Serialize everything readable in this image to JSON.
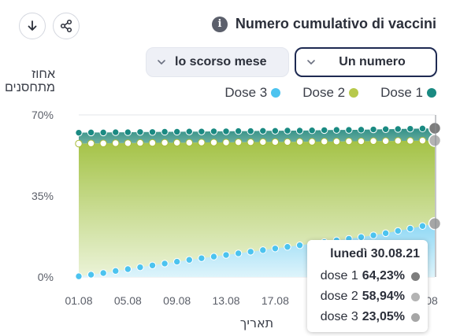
{
  "header": {
    "title": "Numero cumulativo di vaccini",
    "period_select": "lo scorso mese",
    "metric_select": "Un numero"
  },
  "chart_data": {
    "type": "area",
    "ylabel": "אחוז\nמתחסנים",
    "xlabel": "תאריך",
    "ylim": [
      0,
      70
    ],
    "yticks": [
      "70%",
      "35%",
      "0%"
    ],
    "xticks": [
      "01.08",
      "05.08",
      "09.08",
      "13.08",
      "17.08",
      "21.08",
      "25.08",
      "08"
    ],
    "x": [
      "01.08",
      "02.08",
      "03.08",
      "04.08",
      "05.08",
      "06.08",
      "07.08",
      "08.08",
      "09.08",
      "10.08",
      "11.08",
      "12.08",
      "13.08",
      "14.08",
      "15.08",
      "16.08",
      "17.08",
      "18.08",
      "19.08",
      "20.08",
      "21.08",
      "22.08",
      "23.08",
      "24.08",
      "25.08",
      "26.08",
      "27.08",
      "28.08",
      "29.08",
      "30.08"
    ],
    "grid": true,
    "legend_position": "top-right",
    "series": [
      {
        "name": "Dose 1",
        "color": "#1a8a82",
        "values": [
          62.3,
          62.4,
          62.4,
          62.5,
          62.5,
          62.6,
          62.6,
          62.7,
          62.7,
          62.8,
          62.8,
          62.9,
          62.9,
          63.0,
          63.0,
          63.1,
          63.1,
          63.2,
          63.2,
          63.3,
          63.4,
          63.5,
          63.5,
          63.6,
          63.7,
          63.8,
          63.9,
          64.0,
          64.1,
          64.23
        ]
      },
      {
        "name": "Dose 2",
        "color": "#b7c94b",
        "values": [
          57.6,
          57.7,
          57.7,
          57.8,
          57.8,
          57.9,
          57.9,
          58.0,
          58.0,
          58.0,
          58.1,
          58.1,
          58.1,
          58.2,
          58.2,
          58.3,
          58.3,
          58.3,
          58.4,
          58.4,
          58.5,
          58.5,
          58.6,
          58.6,
          58.7,
          58.7,
          58.8,
          58.8,
          58.9,
          58.94
        ]
      },
      {
        "name": "Dose 3",
        "color": "#4cc3ef",
        "values": [
          0.3,
          1.0,
          1.7,
          2.6,
          3.4,
          4.2,
          5.0,
          5.8,
          6.6,
          7.4,
          8.1,
          8.8,
          9.5,
          10.2,
          10.9,
          11.6,
          12.3,
          13.0,
          13.7,
          14.4,
          15.1,
          15.8,
          16.5,
          17.2,
          18.0,
          18.9,
          19.9,
          20.9,
          22.0,
          23.05
        ]
      }
    ],
    "tooltip": {
      "title": "lunedì 30.08.21",
      "rows": [
        {
          "label": "dose 1",
          "value": "64,23%",
          "color": "#7d7d7d"
        },
        {
          "label": "dose 2",
          "value": "58,94%",
          "color": "#b3b3b3"
        },
        {
          "label": "dose 3",
          "value": "23,05%",
          "color": "#a6a6a6"
        }
      ]
    }
  }
}
